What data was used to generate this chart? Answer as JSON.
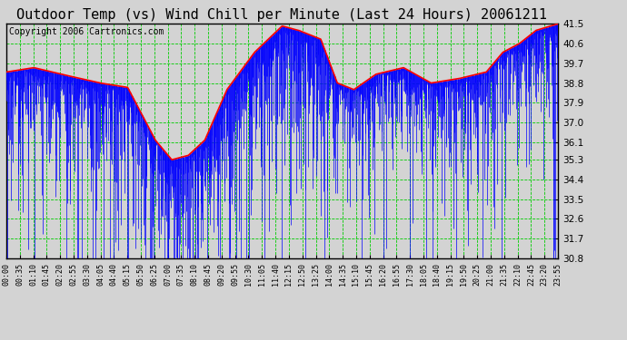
{
  "title": "Outdoor Temp (vs) Wind Chill per Minute (Last 24 Hours) 20061211",
  "copyright": "Copyright 2006 Cartronics.com",
  "ylabel_values": [
    41.5,
    40.6,
    39.7,
    38.8,
    37.9,
    37.0,
    36.1,
    35.3,
    34.4,
    33.5,
    32.6,
    31.7,
    30.8
  ],
  "ymin": 30.8,
  "ymax": 41.5,
  "x_tick_labels": [
    "00:00",
    "00:35",
    "01:10",
    "01:45",
    "02:20",
    "02:55",
    "03:30",
    "04:05",
    "04:40",
    "05:15",
    "05:50",
    "06:25",
    "07:00",
    "07:35",
    "08:10",
    "08:45",
    "09:20",
    "09:55",
    "10:30",
    "11:05",
    "11:40",
    "12:15",
    "12:50",
    "13:25",
    "14:00",
    "14:35",
    "15:10",
    "15:45",
    "16:20",
    "16:55",
    "17:30",
    "18:05",
    "18:40",
    "19:15",
    "19:50",
    "20:25",
    "21:00",
    "21:35",
    "22:10",
    "22:45",
    "23:20",
    "23:55"
  ],
  "bg_color": "#d3d3d3",
  "plot_bg_color": "#d3d3d3",
  "bar_color": "#0000ff",
  "line_color": "#ff0000",
  "grid_color": "#00cc00",
  "title_fontsize": 11,
  "copyright_fontsize": 7
}
